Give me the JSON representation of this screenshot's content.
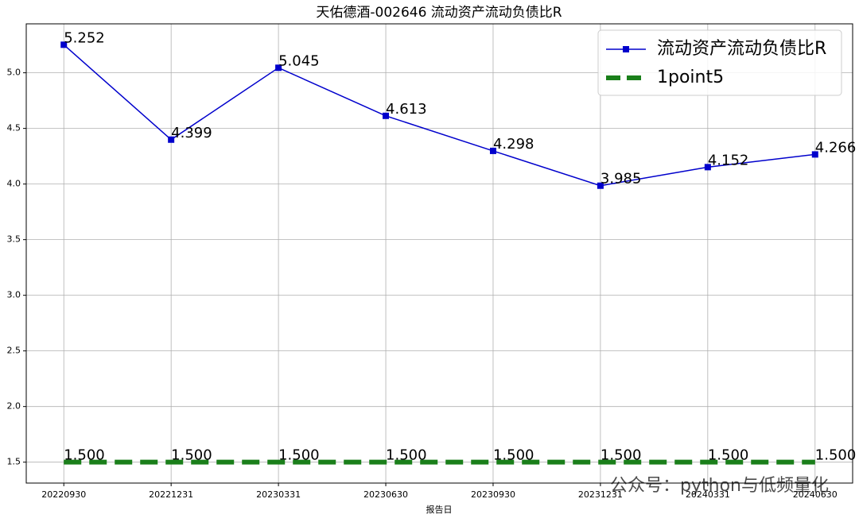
{
  "chart_data": {
    "type": "line",
    "title": "天佑德酒-002646 流动资产流动负债比R",
    "x_label": "报告日",
    "categories": [
      "20220930",
      "20221231",
      "20230331",
      "20230630",
      "20230930",
      "20231231",
      "20240331",
      "20240630"
    ],
    "series": [
      {
        "name": "流动资产流动负债比R",
        "color": "#0000cc",
        "marker": "square",
        "linestyle": "solid",
        "values": [
          5.252,
          4.399,
          5.045,
          4.613,
          4.298,
          3.985,
          4.152,
          4.266
        ]
      },
      {
        "name": "1point5",
        "color": "#1a7f1a",
        "linestyle": "dashed",
        "values": [
          1.5,
          1.5,
          1.5,
          1.5,
          1.5,
          1.5,
          1.5,
          1.5
        ],
        "value_labels": [
          "1.500",
          "1.500",
          "1.500",
          "1.500",
          "1.500",
          "1.500",
          "1.500",
          "1.500"
        ]
      }
    ],
    "ylim": [
      1.312,
      5.44
    ],
    "yticks": [
      1.5,
      {
        "value": 2.0,
        "label": "2.0"
      },
      2.5,
      {
        "value": 3.0,
        "label": "3.0"
      },
      3.5,
      {
        "value": 4.0,
        "label": "4.0"
      },
      4.5,
      {
        "value": 5.0,
        "label": "5.0"
      }
    ],
    "grid": true,
    "legend": "upper right",
    "watermark": "公众号：python与低频量化"
  }
}
